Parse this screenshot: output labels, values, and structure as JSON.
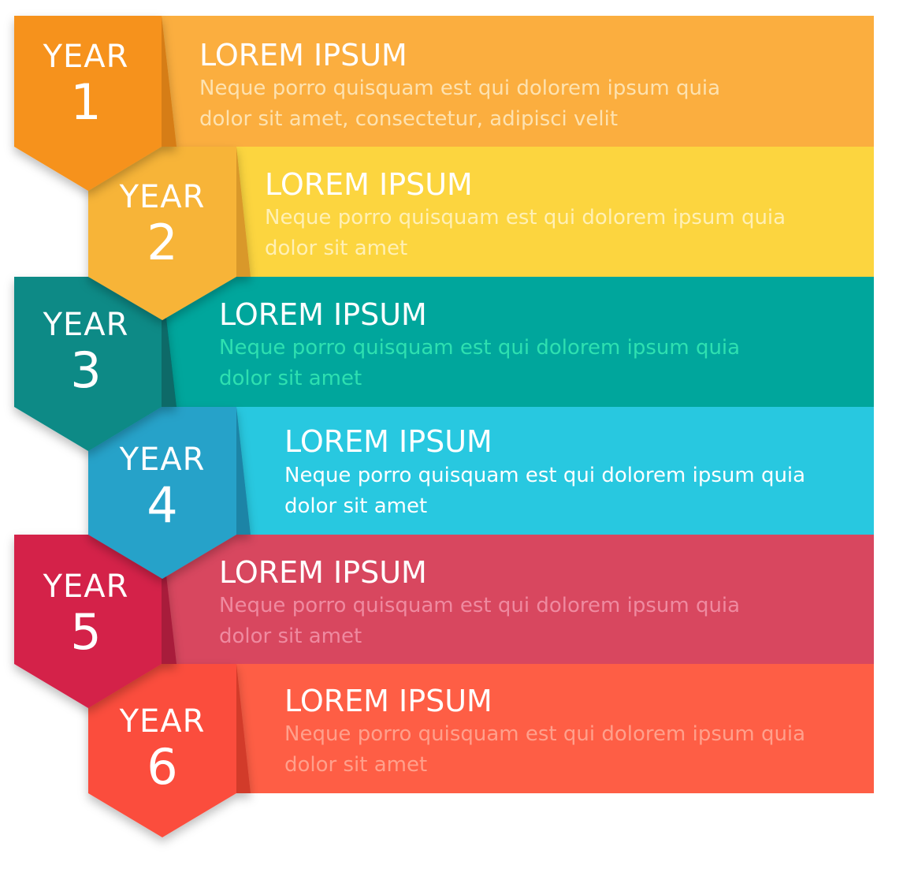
{
  "items": [
    {
      "year_word": "YEAR",
      "number": "1",
      "title": "LOREM IPSUM",
      "desc": "Neque porro quisquam est qui dolorem ipsum quia\ndolor sit amet, consectetur, adipisci velit",
      "band_color": "#fbae3f",
      "tab_color": "#f6921e",
      "tab_shade": "#d67d14",
      "desc_color": "#fde2b0"
    },
    {
      "year_word": "YEAR",
      "number": "2",
      "title": "LOREM IPSUM",
      "desc": "Neque porro quisquam est qui dolorem ipsum quia\ndolor sit amet",
      "band_color": "#fcd53f",
      "tab_color": "#f7b438",
      "tab_shade": "#d9982a",
      "desc_color": "#fff0b5"
    },
    {
      "year_word": "YEAR",
      "number": "3",
      "title": "LOREM IPSUM",
      "desc": "Neque porro quisquam est qui dolorem ipsum quia\ndolor sit amet",
      "band_color": "#00a69c",
      "tab_color": "#0a8a86",
      "tab_shade": "#076b68",
      "desc_color": "#2ee0b0"
    },
    {
      "year_word": "YEAR",
      "number": "4",
      "title": "LOREM IPSUM",
      "desc": "Neque porro quisquam est qui dolorem ipsum quia\ndolor sit amet",
      "band_color": "#28c8e0",
      "tab_color": "#27a2c9",
      "tab_shade": "#1d84a6",
      "desc_color": "#ffffff"
    },
    {
      "year_word": "YEAR",
      "number": "5",
      "title": "LOREM IPSUM",
      "desc": "Neque porro quisquam est qui dolorem ipsum quia\ndolor sit amet",
      "band_color": "#d8475f",
      "tab_color": "#d4234a",
      "tab_shade": "#a81a3a",
      "desc_color": "#ef8aa0"
    },
    {
      "year_word": "YEAR",
      "number": "6",
      "title": "LOREM IPSUM",
      "desc": "Neque porro quisquam est qui dolorem ipsum quia\ndolor sit amet",
      "band_color": "#fe5e45",
      "tab_color": "#fb4e3e",
      "tab_shade": "#d23a2c",
      "desc_color": "#ffa08c"
    }
  ]
}
